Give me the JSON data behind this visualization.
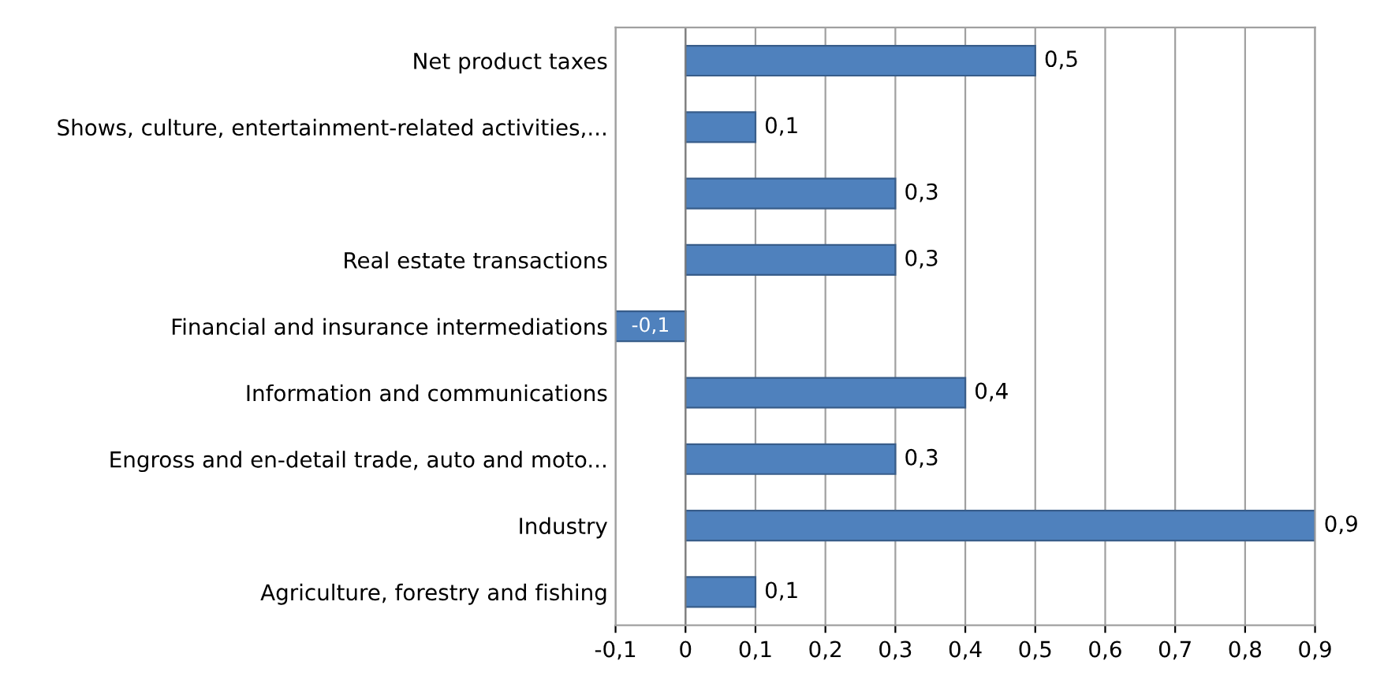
{
  "chart_data": {
    "type": "bar",
    "orientation": "horizontal",
    "categories": [
      "Net product taxes",
      "Shows, culture, entertainment-related activities,...",
      null,
      "Real estate transactions",
      "Financial and insurance intermediations",
      "Information and communications",
      "Engross and en-detail trade, auto and moto...",
      "Industry",
      "Agriculture, forestry and fishing"
    ],
    "series": [
      {
        "color": "#4f81bd",
        "values": [
          0.5,
          0.1,
          0.3,
          0.3,
          -0.1,
          0.4,
          0.3,
          0.9,
          0.1
        ],
        "value_labels": [
          "0,5",
          "0,1",
          "0,3",
          "0,3",
          "-0,1",
          "0,4",
          "0,3",
          "0,9",
          "0,1"
        ]
      }
    ],
    "xlim": [
      -0.1,
      0.9
    ],
    "xticks": [
      {
        "value": -0.1,
        "label": "-0,1"
      },
      0,
      {
        "value": 0.1,
        "label": "0,1"
      },
      {
        "value": 0.2,
        "label": "0,2"
      },
      {
        "value": 0.3,
        "label": "0,3"
      },
      {
        "value": 0.4,
        "label": "0,4"
      },
      {
        "value": 0.5,
        "label": "0,5"
      },
      {
        "value": 0.6,
        "label": "0,6"
      },
      {
        "value": 0.7,
        "label": "0,7"
      },
      {
        "value": 0.8,
        "label": "0,8"
      },
      {
        "value": 0.9,
        "label": "0,9"
      }
    ],
    "grid": "x",
    "legend": false
  }
}
